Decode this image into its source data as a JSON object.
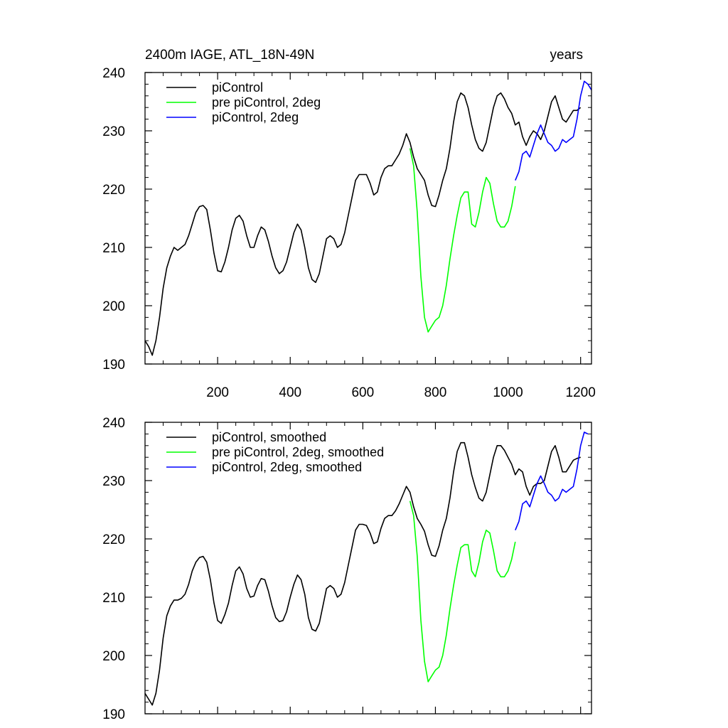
{
  "figure": {
    "title_left": "2400m IAGE, ATL_18N-49N",
    "title_right": "years"
  },
  "colors": {
    "black": "#000000",
    "green": "#00ff00",
    "blue": "#0000ff"
  },
  "chart_data": [
    {
      "type": "line",
      "title": "2400m IAGE, ATL_18N-49N",
      "units": "years",
      "xlim": [
        0,
        1230
      ],
      "ylim": [
        190,
        240
      ],
      "xticks": [
        200,
        400,
        600,
        800,
        1000,
        1200
      ],
      "yticks": [
        190,
        200,
        210,
        220,
        230,
        240
      ],
      "xtick_labels_shown": true,
      "legend_position": "top-left",
      "series": [
        {
          "name": "piControl",
          "color": "#000000",
          "x": [
            0,
            10,
            20,
            30,
            40,
            50,
            60,
            70,
            80,
            90,
            100,
            110,
            120,
            130,
            140,
            150,
            160,
            170,
            180,
            190,
            200,
            210,
            220,
            230,
            240,
            250,
            260,
            270,
            280,
            290,
            300,
            310,
            320,
            330,
            340,
            350,
            360,
            370,
            380,
            390,
            400,
            410,
            420,
            430,
            440,
            450,
            460,
            470,
            480,
            490,
            500,
            510,
            520,
            530,
            540,
            550,
            560,
            570,
            580,
            590,
            600,
            610,
            620,
            630,
            640,
            650,
            660,
            670,
            680,
            690,
            700,
            710,
            720,
            730,
            740,
            750,
            760,
            770,
            780,
            790,
            800,
            810,
            820,
            830,
            840,
            850,
            860,
            870,
            880,
            890,
            900,
            910,
            920,
            930,
            940,
            950,
            960,
            970,
            980,
            990,
            1000,
            1010,
            1020,
            1030,
            1040,
            1050,
            1060,
            1070,
            1080,
            1090,
            1100,
            1110,
            1120,
            1130,
            1140,
            1150,
            1160,
            1170,
            1180,
            1190,
            1200
          ],
          "y": [
            194,
            193,
            191.5,
            194,
            198,
            203,
            206.5,
            208.5,
            210,
            209.5,
            210,
            210.5,
            212,
            214,
            216,
            217,
            217.2,
            216.5,
            213,
            209,
            206,
            205.8,
            207.5,
            210,
            213,
            215,
            215.5,
            214.5,
            212,
            210,
            210,
            212,
            213.5,
            213,
            211,
            208.5,
            206.5,
            205.5,
            206,
            207.5,
            210,
            212.5,
            214,
            213,
            210,
            206.5,
            204.5,
            204,
            205.5,
            208.5,
            211.5,
            212,
            211.5,
            210,
            210.5,
            212.5,
            215.5,
            218.5,
            221.5,
            222.5,
            222.5,
            222.5,
            221,
            219,
            219.5,
            222,
            223.5,
            224,
            224,
            225,
            226,
            227.5,
            229.5,
            228,
            225.5,
            223.5,
            222.5,
            221.5,
            219,
            217.2,
            217,
            219,
            221.5,
            223.5,
            227,
            231.5,
            235,
            236.5,
            236,
            234,
            231,
            228.5,
            227,
            226.5,
            228,
            231,
            234,
            236,
            236.5,
            235.5,
            234,
            233,
            231,
            231.5,
            229,
            227.5,
            229,
            230,
            229.5,
            228.5,
            230,
            232.5,
            235,
            236,
            234,
            232,
            231.5,
            232.5,
            233.5,
            233.5,
            234
          ]
        },
        {
          "name": "pre piControl, 2deg",
          "color": "#00ff00",
          "x": [
            730,
            740,
            750,
            760,
            770,
            780,
            790,
            800,
            810,
            820,
            830,
            840,
            850,
            860,
            870,
            880,
            890,
            900,
            910,
            920,
            930,
            940,
            950,
            960,
            970,
            980,
            990,
            1000,
            1010,
            1020
          ],
          "y": [
            227,
            224,
            216,
            205,
            198,
            195.5,
            196.5,
            197.5,
            198,
            200,
            203.5,
            208,
            212,
            215.5,
            218.5,
            219.5,
            219.5,
            214,
            213.5,
            216,
            219.5,
            222,
            221,
            217.5,
            214.5,
            213.5,
            213.5,
            214.5,
            217,
            220.5
          ]
        },
        {
          "name": "piControl, 2deg",
          "color": "#0000ff",
          "x": [
            1020,
            1030,
            1040,
            1050,
            1060,
            1070,
            1080,
            1090,
            1100,
            1110,
            1120,
            1130,
            1140,
            1150,
            1160,
            1170,
            1180,
            1190,
            1200,
            1210,
            1220,
            1230
          ],
          "y": [
            221.5,
            223,
            226,
            226.5,
            225.5,
            227.5,
            229.5,
            231,
            229.5,
            228,
            227.5,
            226.5,
            227,
            228.5,
            228,
            228.5,
            229,
            232,
            236,
            238.5,
            238,
            237
          ]
        }
      ]
    },
    {
      "type": "line",
      "xlim": [
        0,
        1230
      ],
      "ylim": [
        190,
        240
      ],
      "xticks": [
        200,
        400,
        600,
        800,
        1000,
        1200
      ],
      "yticks": [
        190,
        200,
        210,
        220,
        230,
        240
      ],
      "xtick_labels_shown": false,
      "legend_position": "top-left",
      "series": [
        {
          "name": "piControl, smoothed",
          "color": "#000000",
          "x": [
            0,
            10,
            20,
            30,
            40,
            50,
            60,
            70,
            80,
            90,
            100,
            110,
            120,
            130,
            140,
            150,
            160,
            170,
            180,
            190,
            200,
            210,
            220,
            230,
            240,
            250,
            260,
            270,
            280,
            290,
            300,
            310,
            320,
            330,
            340,
            350,
            360,
            370,
            380,
            390,
            400,
            410,
            420,
            430,
            440,
            450,
            460,
            470,
            480,
            490,
            500,
            510,
            520,
            530,
            540,
            550,
            560,
            570,
            580,
            590,
            600,
            610,
            620,
            630,
            640,
            650,
            660,
            670,
            680,
            690,
            700,
            710,
            720,
            730,
            740,
            750,
            760,
            770,
            780,
            790,
            800,
            810,
            820,
            830,
            840,
            850,
            860,
            870,
            880,
            890,
            900,
            910,
            920,
            930,
            940,
            950,
            960,
            970,
            980,
            990,
            1000,
            1010,
            1020,
            1030,
            1040,
            1050,
            1060,
            1070,
            1080,
            1090,
            1100,
            1110,
            1120,
            1130,
            1140,
            1150,
            1160,
            1170,
            1180,
            1190,
            1200
          ],
          "y": [
            193.5,
            192.5,
            191.5,
            193.5,
            197.5,
            203,
            206.8,
            208.5,
            209.5,
            209.5,
            209.8,
            210.5,
            212.2,
            214.5,
            216,
            216.8,
            217,
            216,
            213,
            209,
            206,
            205.5,
            207,
            209,
            212,
            214.5,
            215.2,
            214,
            211.5,
            210,
            210.2,
            212,
            213.2,
            213,
            211,
            208.5,
            206.5,
            205.8,
            206,
            207.5,
            210,
            212.2,
            213.8,
            213,
            210.5,
            206.5,
            204.5,
            204.2,
            205.5,
            208.5,
            211.5,
            212,
            211.5,
            210,
            210.5,
            212.5,
            215.5,
            218.5,
            221.5,
            222.5,
            222.5,
            222.3,
            221,
            219.2,
            219.5,
            221.8,
            223.5,
            224,
            224,
            224.8,
            226,
            227.5,
            229,
            228,
            225.5,
            223.5,
            222.5,
            221.3,
            219,
            217.2,
            217,
            218.8,
            221.5,
            223.5,
            227,
            231.5,
            235,
            236.5,
            236.5,
            234,
            231,
            228.8,
            227,
            226.5,
            228,
            231,
            234,
            236,
            236,
            235.2,
            234,
            232.8,
            231,
            232,
            231.5,
            229,
            227.5,
            229,
            229.5,
            229.5,
            230,
            232.5,
            235,
            236,
            234,
            231.5,
            231.5,
            232.5,
            233.5,
            233.8,
            234
          ]
        },
        {
          "name": "pre piControl, 2deg, smoothed",
          "color": "#00ff00",
          "x": [
            730,
            740,
            750,
            760,
            770,
            780,
            790,
            800,
            810,
            820,
            830,
            840,
            850,
            860,
            870,
            880,
            890,
            900,
            910,
            920,
            930,
            940,
            950,
            960,
            970,
            980,
            990,
            1000,
            1010,
            1020
          ],
          "y": [
            226.5,
            224,
            217,
            206,
            199,
            195.5,
            196.5,
            197.5,
            198,
            200,
            203.5,
            208,
            212,
            215.5,
            218.5,
            219,
            219,
            214.5,
            213.5,
            216,
            219.5,
            221.5,
            221,
            218,
            214.5,
            213.5,
            213.5,
            214.5,
            216.5,
            219.5
          ]
        },
        {
          "name": "piControl, 2deg, smoothed",
          "color": "#0000ff",
          "x": [
            1020,
            1030,
            1040,
            1050,
            1060,
            1070,
            1080,
            1090,
            1100,
            1110,
            1120,
            1130,
            1140,
            1150,
            1160,
            1170,
            1180,
            1190,
            1200,
            1210,
            1220
          ],
          "y": [
            221.5,
            223,
            226,
            226.5,
            225.5,
            227.5,
            229.5,
            230.8,
            229.5,
            228,
            227.5,
            226.5,
            227,
            228.5,
            228,
            228.5,
            229,
            232,
            236,
            238.3,
            238
          ]
        }
      ]
    }
  ]
}
